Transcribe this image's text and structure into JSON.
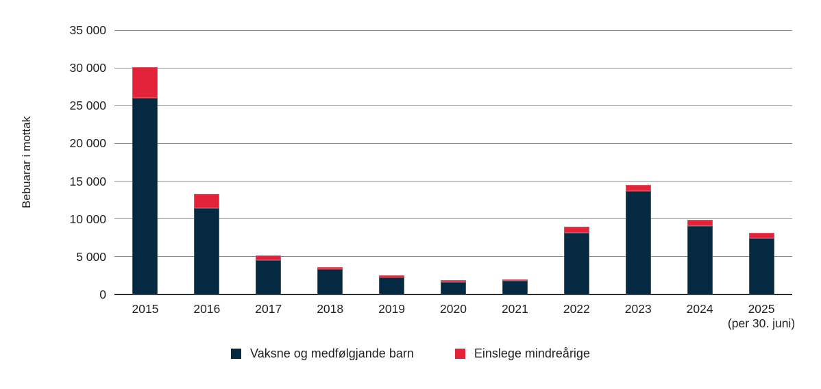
{
  "chart_data": {
    "type": "bar",
    "stacked": true,
    "title": "",
    "xlabel": "",
    "ylabel": "Bebuarar i mottak",
    "ylim": [
      0,
      35000
    ],
    "grid": true,
    "legend_position": "bottom",
    "ytick_values": [
      0,
      5000,
      10000,
      15000,
      20000,
      25000,
      30000,
      35000
    ],
    "ytick_labels": [
      "0",
      "5 000",
      "10 000",
      "15 000",
      "20 000",
      "25 000",
      "30 000",
      "35 000"
    ],
    "categories": [
      "2015",
      "2016",
      "2017",
      "2018",
      "2019",
      "2020",
      "2021",
      "2022",
      "2023",
      "2024",
      "2025"
    ],
    "category_sublabels": [
      "",
      "",
      "",
      "",
      "",
      "",
      "",
      "",
      "",
      "",
      "(per 30. juni)"
    ],
    "series": [
      {
        "name": "Vaksne og medfølgjande barn",
        "color": "#052940",
        "edge_color": "#8fa6b4",
        "values": [
          26000,
          11400,
          4500,
          3350,
          2250,
          1600,
          1850,
          8200,
          13700,
          9100,
          7400
        ]
      },
      {
        "name": "Einslege mindreårige",
        "color": "#e3233a",
        "edge_color": "#f0929d",
        "values": [
          4100,
          1900,
          600,
          300,
          300,
          250,
          200,
          800,
          800,
          800,
          700
        ]
      }
    ]
  },
  "colors": {
    "background": "#ffffff",
    "grid_line": "#88898b",
    "axis_line": "#2b2d2f",
    "text": "#221e1f"
  }
}
